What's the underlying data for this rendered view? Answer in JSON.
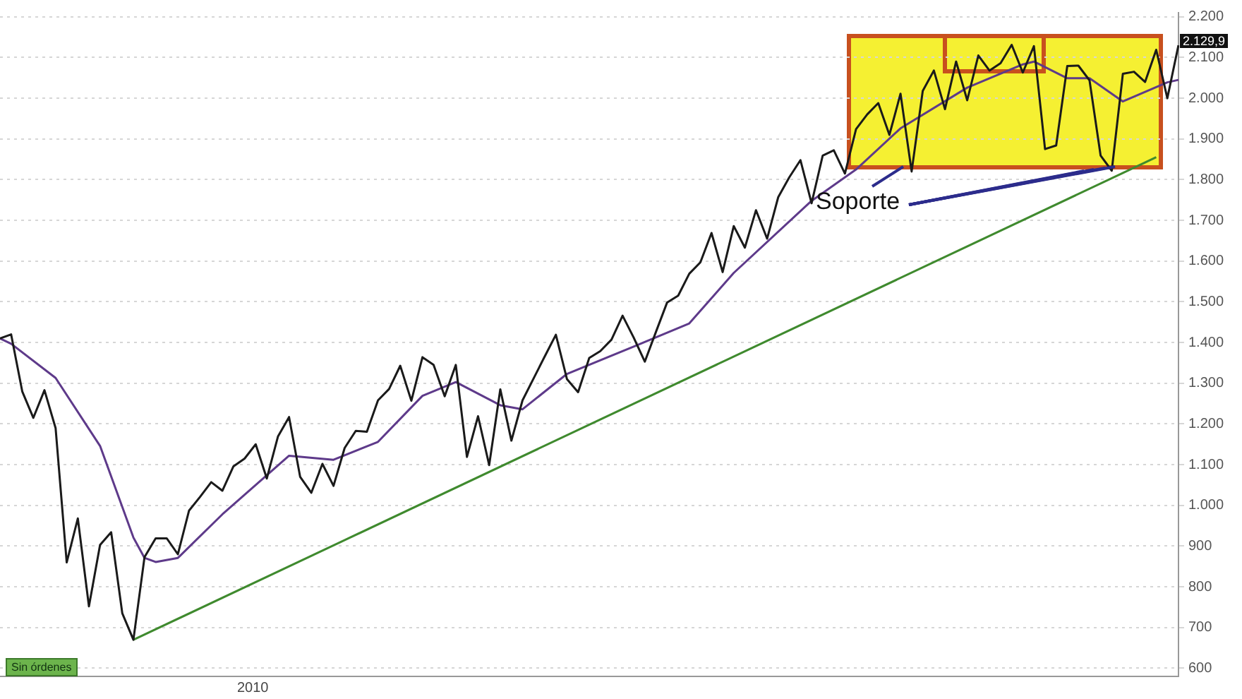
{
  "chart_data": {
    "type": "line",
    "categories": [
      null,
      null,
      null,
      null,
      null,
      null,
      null,
      null,
      null,
      null,
      null,
      null,
      null,
      null,
      null,
      null,
      null,
      null,
      null,
      null,
      null,
      null,
      null,
      null,
      null,
      null,
      null,
      null,
      null,
      null,
      null,
      null,
      null,
      null,
      null,
      null,
      null,
      null,
      null,
      null,
      null,
      null,
      null,
      null,
      null,
      null,
      null,
      null,
      null,
      null,
      null,
      null,
      null,
      null,
      null,
      null,
      null,
      null,
      null,
      null,
      null,
      null,
      null,
      null,
      null,
      null,
      null,
      null,
      null,
      null,
      null,
      null,
      null,
      null,
      null,
      null,
      null,
      null,
      null,
      null,
      null,
      null,
      null,
      null,
      null,
      null,
      null,
      null,
      null,
      null,
      null,
      null,
      null,
      null,
      null,
      null,
      null,
      null,
      null,
      null,
      null,
      null,
      null,
      null,
      null,
      null,
      null
    ],
    "ylim": [
      580,
      2210
    ],
    "yticks": [
      {
        "value": 600,
        "label": "600"
      },
      {
        "value": 700,
        "label": "700"
      },
      {
        "value": 800,
        "label": "800"
      },
      {
        "value": 900,
        "label": "900"
      },
      {
        "value": 1000,
        "label": "1.000"
      },
      {
        "value": 1100,
        "label": "1.100"
      },
      {
        "value": 1200,
        "label": "1.200"
      },
      {
        "value": 1300,
        "label": "1.300"
      },
      {
        "value": 1400,
        "label": "1.400"
      },
      {
        "value": 1500,
        "label": "1.500"
      },
      {
        "value": 1600,
        "label": "1.600"
      },
      {
        "value": 1700,
        "label": "1.700"
      },
      {
        "value": 1800,
        "label": "1.800"
      },
      {
        "value": 1900,
        "label": "1.900"
      },
      {
        "value": 2000,
        "label": "2.000"
      },
      {
        "value": 2100,
        "label": "2.100"
      },
      {
        "value": 2200,
        "label": "2.200"
      }
    ],
    "tick_labels": "y",
    "grid": "y",
    "legend": false,
    "marker": "none",
    "annotations": [
      "Soporte",
      "Sin órdenes",
      "2010",
      "2.129,9"
    ],
    "series": [
      {
        "color": "#1a1a1a",
        "values": [
          1410,
          1420,
          1280,
          1215,
          1283,
          1190,
          860,
          968,
          752,
          903,
          934,
          735,
          670,
          873,
          919,
          919,
          880,
          987,
          1021,
          1057,
          1036,
          1096,
          1115,
          1150,
          1066,
          1169,
          1217,
          1070,
          1031,
          1102,
          1048,
          1141,
          1183,
          1181,
          1258,
          1286,
          1343,
          1257,
          1364,
          1345,
          1268,
          1345,
          1119,
          1219,
          1099,
          1285,
          1159,
          1258,
          1312,
          1366,
          1419,
          1310,
          1278,
          1362,
          1379,
          1407,
          1466,
          1412,
          1353,
          1426,
          1498,
          1515,
          1569,
          1597,
          1669,
          1573,
          1686,
          1633,
          1725,
          1655,
          1757,
          1806,
          1848,
          1742,
          1859,
          1872,
          1815,
          1924,
          1960,
          1988,
          1910,
          2011,
          1820,
          2018,
          2068,
          1973,
          2090,
          1995,
          2105,
          2068,
          2086,
          2131,
          2063,
          2128,
          1875,
          1884,
          2079,
          2080,
          2044,
          1859,
          1822,
          2060,
          2065,
          2040,
          2119,
          2000,
          2130
        ]
      },
      {
        "color": "#5e3a8a",
        "values": [
          1410,
          1397,
          null,
          null,
          null,
          1313,
          null,
          null,
          null,
          1146,
          null,
          null,
          921,
          871,
          861,
          null,
          871,
          null,
          null,
          null,
          978,
          null,
          null,
          null,
          null,
          null,
          1122,
          null,
          null,
          null,
          1112,
          null,
          null,
          null,
          1156,
          null,
          null,
          null,
          1269,
          null,
          null,
          1303,
          null,
          null,
          null,
          1246,
          null,
          1236,
          null,
          null,
          null,
          1323,
          null,
          null,
          null,
          null,
          null,
          1390,
          null,
          null,
          null,
          null,
          1447,
          null,
          null,
          null,
          1571,
          null,
          null,
          null,
          null,
          null,
          null,
          1748,
          null,
          null,
          null,
          1825,
          null,
          null,
          null,
          1926,
          null,
          null,
          null,
          null,
          null,
          2026,
          null,
          null,
          null,
          null,
          2083,
          2090,
          null,
          null,
          2049,
          null,
          2049,
          null,
          null,
          1992,
          null,
          null,
          null,
          2039,
          2045
        ]
      },
      {
        "color": "#3f8a2e",
        "values": [
          null,
          null,
          null,
          null,
          null,
          null,
          null,
          null,
          null,
          null,
          null,
          null,
          670,
          null,
          null,
          null,
          null,
          null,
          null,
          null,
          null,
          null,
          null,
          null,
          null,
          null,
          null,
          null,
          null,
          null,
          null,
          null,
          null,
          null,
          null,
          null,
          null,
          null,
          null,
          null,
          null,
          null,
          null,
          null,
          null,
          null,
          null,
          null,
          null,
          null,
          null,
          null,
          null,
          null,
          null,
          null,
          null,
          null,
          null,
          null,
          null,
          null,
          null,
          null,
          null,
          null,
          null,
          null,
          null,
          null,
          null,
          null,
          null,
          null,
          null,
          null,
          null,
          null,
          null,
          null,
          null,
          null,
          null,
          null,
          null,
          null,
          null,
          null,
          null,
          null,
          null,
          null,
          null,
          null,
          null,
          null,
          null,
          null,
          null,
          null,
          null,
          null,
          null,
          null,
          1855,
          null,
          null
        ]
      }
    ]
  }
}
